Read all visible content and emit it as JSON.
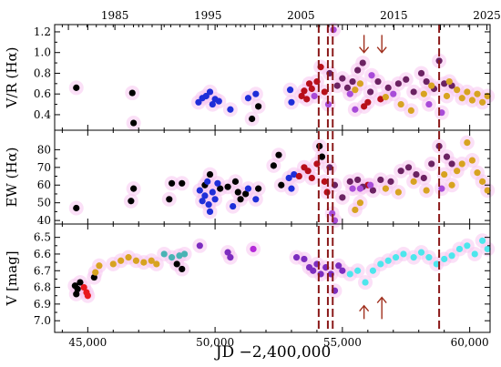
{
  "chart_data": {
    "type": "scatter",
    "title": "",
    "top_axis": {
      "ticks": [
        1985,
        1995,
        2005,
        2015,
        2025
      ]
    },
    "x_axis": {
      "label": "JD −2,400,000",
      "lim": [
        43700,
        60800
      ],
      "ticks": [
        45000,
        50000,
        55000,
        60000
      ],
      "tick_labels": [
        "45,000",
        "50,000",
        "55,000",
        "60,000"
      ]
    },
    "vertical_markers_jd": [
      54070,
      54430,
      54620,
      58800
    ],
    "panels": [
      {
        "name": "vr",
        "ylabel": "V/R (Hα)",
        "ylim": [
          0.25,
          1.27
        ],
        "yticks": [
          0.4,
          0.6,
          0.8,
          1.0,
          1.2
        ],
        "ytick_labels": [
          "0.4",
          "0.6",
          "0.8",
          "1.0",
          "1.2"
        ],
        "arrows": [
          {
            "jd": 55850,
            "from": 1.17,
            "to": 1.0
          },
          {
            "jd": 56550,
            "from": 1.17,
            "to": 1.0
          }
        ],
        "groups": [
          {
            "color": "#000000",
            "points": [
              [
                44550,
                0.66
              ],
              [
                46750,
                0.61
              ],
              [
                46800,
                0.32
              ],
              [
                51450,
                0.36
              ],
              [
                51700,
                0.48
              ]
            ]
          },
          {
            "color": "#1f2ed8",
            "points": [
              [
                49350,
                0.52
              ],
              [
                49500,
                0.56
              ],
              [
                49650,
                0.58
              ],
              [
                49800,
                0.62
              ],
              [
                49900,
                0.5
              ],
              [
                50000,
                0.55
              ],
              [
                50150,
                0.53
              ],
              [
                50600,
                0.45
              ],
              [
                51300,
                0.56
              ],
              [
                51600,
                0.6
              ],
              [
                52950,
                0.64
              ],
              [
                53000,
                0.52
              ]
            ]
          },
          {
            "color": "#b80f1a",
            "points": [
              [
                53400,
                0.58
              ],
              [
                53500,
                0.63
              ],
              [
                53600,
                0.55
              ],
              [
                53700,
                0.7
              ],
              [
                53800,
                0.65
              ],
              [
                54000,
                0.72
              ],
              [
                54150,
                0.86
              ],
              [
                54300,
                0.62
              ],
              [
                55850,
                0.48
              ],
              [
                56000,
                0.52
              ],
              [
                56500,
                0.55
              ]
            ]
          },
          {
            "color": "#6b2262",
            "points": [
              [
                54500,
                0.8
              ],
              [
                54800,
                0.68
              ],
              [
                55000,
                0.75
              ],
              [
                55200,
                0.66
              ],
              [
                55400,
                0.72
              ],
              [
                55600,
                0.83
              ],
              [
                55800,
                0.9
              ],
              [
                56100,
                0.62
              ],
              [
                56400,
                0.72
              ],
              [
                56800,
                0.66
              ],
              [
                57200,
                0.7
              ],
              [
                57500,
                0.74
              ],
              [
                57800,
                0.62
              ],
              [
                58100,
                0.8
              ],
              [
                58300,
                0.72
              ],
              [
                58600,
                0.65
              ],
              [
                58800,
                0.92
              ],
              [
                59000,
                0.7
              ],
              [
                59300,
                0.68
              ]
            ]
          },
          {
            "color": "#a84bd8",
            "points": [
              [
                53900,
                0.58
              ],
              [
                54450,
                0.5
              ],
              [
                54650,
                1.22
              ],
              [
                55300,
                0.6
              ],
              [
                55500,
                0.45
              ],
              [
                56150,
                0.78
              ],
              [
                57000,
                0.6
              ],
              [
                58400,
                0.5
              ],
              [
                58900,
                0.42
              ]
            ]
          },
          {
            "color": "#d7a321",
            "points": [
              [
                55500,
                0.64
              ],
              [
                55700,
                0.7
              ],
              [
                56700,
                0.57
              ],
              [
                57300,
                0.5
              ],
              [
                57700,
                0.44
              ],
              [
                58200,
                0.6
              ],
              [
                58500,
                0.68
              ],
              [
                59100,
                0.58
              ],
              [
                59200,
                0.72
              ],
              [
                59500,
                0.64
              ],
              [
                59700,
                0.56
              ],
              [
                59900,
                0.62
              ],
              [
                60100,
                0.54
              ],
              [
                60300,
                0.6
              ],
              [
                60500,
                0.52
              ],
              [
                60700,
                0.58
              ]
            ]
          }
        ]
      },
      {
        "name": "ew",
        "ylabel": "EW (Hα)",
        "ylim": [
          38,
          91
        ],
        "yticks": [
          40,
          50,
          60,
          70,
          80
        ],
        "ytick_labels": [
          "40",
          "50",
          "60",
          "70",
          "80"
        ],
        "arrows": [],
        "groups": [
          {
            "color": "#000000",
            "points": [
              [
                44550,
                47
              ],
              [
                46700,
                51
              ],
              [
                46800,
                58
              ],
              [
                48200,
                52
              ],
              [
                48300,
                61
              ],
              [
                48700,
                61
              ],
              [
                49600,
                60
              ],
              [
                49800,
                66
              ],
              [
                50200,
                58
              ],
              [
                50500,
                59
              ],
              [
                50800,
                62
              ],
              [
                50900,
                56
              ],
              [
                51000,
                52
              ],
              [
                51200,
                55
              ],
              [
                51700,
                58
              ],
              [
                52300,
                71
              ],
              [
                52500,
                77
              ],
              [
                52600,
                60
              ],
              [
                54100,
                82
              ],
              [
                54200,
                76
              ]
            ]
          },
          {
            "color": "#1f2ed8",
            "points": [
              [
                49400,
                57
              ],
              [
                49500,
                51
              ],
              [
                49600,
                54
              ],
              [
                49700,
                62
              ],
              [
                49750,
                49
              ],
              [
                49800,
                45
              ],
              [
                49900,
                56
              ],
              [
                50000,
                52
              ],
              [
                50100,
                61
              ],
              [
                50700,
                48
              ],
              [
                51300,
                58
              ],
              [
                51600,
                52
              ],
              [
                52900,
                64
              ],
              [
                53000,
                58
              ],
              [
                53100,
                66
              ]
            ]
          },
          {
            "color": "#b80f1a",
            "points": [
              [
                53300,
                65
              ],
              [
                53500,
                70
              ],
              [
                53650,
                68
              ],
              [
                53800,
                64
              ],
              [
                54000,
                72
              ],
              [
                54300,
                62
              ],
              [
                54400,
                56
              ],
              [
                56000,
                60
              ]
            ]
          },
          {
            "color": "#6b2262",
            "points": [
              [
                54500,
                70
              ],
              [
                54700,
                60
              ],
              [
                55000,
                53
              ],
              [
                55300,
                62
              ],
              [
                55600,
                63
              ],
              [
                55800,
                59
              ],
              [
                56200,
                57
              ],
              [
                56500,
                63
              ],
              [
                56900,
                62
              ],
              [
                57300,
                68
              ],
              [
                57600,
                70
              ],
              [
                57900,
                66
              ],
              [
                58200,
                64
              ],
              [
                58500,
                72
              ],
              [
                58800,
                82
              ],
              [
                59100,
                76
              ],
              [
                59300,
                72
              ]
            ]
          },
          {
            "color": "#a84bd8",
            "points": [
              [
                54600,
                44
              ],
              [
                54700,
                40
              ],
              [
                55400,
                58
              ],
              [
                55700,
                58
              ],
              [
                56100,
                60
              ],
              [
                58900,
                58
              ]
            ]
          },
          {
            "color": "#d7a321",
            "points": [
              [
                55500,
                46
              ],
              [
                55700,
                50
              ],
              [
                56700,
                58
              ],
              [
                57200,
                56
              ],
              [
                57800,
                62
              ],
              [
                58300,
                57
              ],
              [
                59000,
                66
              ],
              [
                59300,
                60
              ],
              [
                59500,
                68
              ],
              [
                59700,
                72
              ],
              [
                59900,
                84
              ],
              [
                60100,
                74
              ],
              [
                60300,
                67
              ],
              [
                60500,
                62
              ],
              [
                60700,
                57
              ]
            ]
          }
        ]
      },
      {
        "name": "v",
        "ylabel": "V [mag]",
        "ylim": [
          7.07,
          6.42
        ],
        "yticks": [
          6.5,
          6.6,
          6.7,
          6.8,
          6.9,
          7.0
        ],
        "ytick_labels": [
          "6.5",
          "6.6",
          "6.7",
          "6.8",
          "6.9",
          "7.0"
        ],
        "arrows": [
          {
            "jd": 55850,
            "from": 6.99,
            "to": 6.91
          },
          {
            "jd": 56550,
            "from": 6.99,
            "to": 6.86
          }
        ],
        "groups": [
          {
            "color": "#000000",
            "points": [
              [
                44500,
                6.79
              ],
              [
                44550,
                6.84
              ],
              [
                44600,
                6.81
              ],
              [
                44700,
                6.77
              ],
              [
                45250,
                6.74
              ],
              [
                48500,
                6.66
              ],
              [
                48700,
                6.69
              ]
            ]
          },
          {
            "color": "#e8171e",
            "points": [
              [
                44850,
                6.8
              ],
              [
                44950,
                6.83
              ],
              [
                45000,
                6.85
              ]
            ]
          },
          {
            "color": "#d7a321",
            "points": [
              [
                45300,
                6.71
              ],
              [
                45450,
                6.67
              ],
              [
                46000,
                6.66
              ],
              [
                46300,
                6.64
              ],
              [
                46600,
                6.62
              ],
              [
                46900,
                6.64
              ],
              [
                47200,
                6.65
              ],
              [
                47500,
                6.64
              ],
              [
                47700,
                6.66
              ]
            ]
          },
          {
            "color": "#49b3b4",
            "points": [
              [
                48000,
                6.6
              ],
              [
                48300,
                6.62
              ],
              [
                48600,
                6.61
              ],
              [
                48800,
                6.6
              ]
            ]
          },
          {
            "color": "#7c2dbf",
            "points": [
              [
                49400,
                6.55
              ],
              [
                50500,
                6.59
              ],
              [
                50600,
                6.62
              ],
              [
                53200,
                6.62
              ],
              [
                53500,
                6.63
              ],
              [
                53700,
                6.68
              ],
              [
                53850,
                6.7
              ],
              [
                54000,
                6.66
              ],
              [
                54150,
                6.72
              ],
              [
                54350,
                6.68
              ],
              [
                54550,
                6.72
              ],
              [
                54700,
                6.82
              ],
              [
                54850,
                6.67
              ],
              [
                55000,
                6.7
              ]
            ]
          },
          {
            "color": "#b42ad8",
            "points": [
              [
                51500,
                6.57
              ]
            ]
          },
          {
            "color": "#4de6ec",
            "points": [
              [
                55300,
                6.72
              ],
              [
                55600,
                6.7
              ],
              [
                55900,
                6.77
              ],
              [
                56200,
                6.7
              ],
              [
                56500,
                6.66
              ],
              [
                56800,
                6.64
              ],
              [
                57100,
                6.62
              ],
              [
                57400,
                6.6
              ],
              [
                57800,
                6.62
              ],
              [
                58100,
                6.59
              ],
              [
                58400,
                6.62
              ],
              [
                58700,
                6.66
              ],
              [
                59000,
                6.63
              ],
              [
                59300,
                6.61
              ],
              [
                59600,
                6.57
              ],
              [
                59900,
                6.55
              ],
              [
                60200,
                6.6
              ],
              [
                60500,
                6.52
              ],
              [
                60700,
                6.57
              ]
            ]
          }
        ]
      }
    ]
  }
}
